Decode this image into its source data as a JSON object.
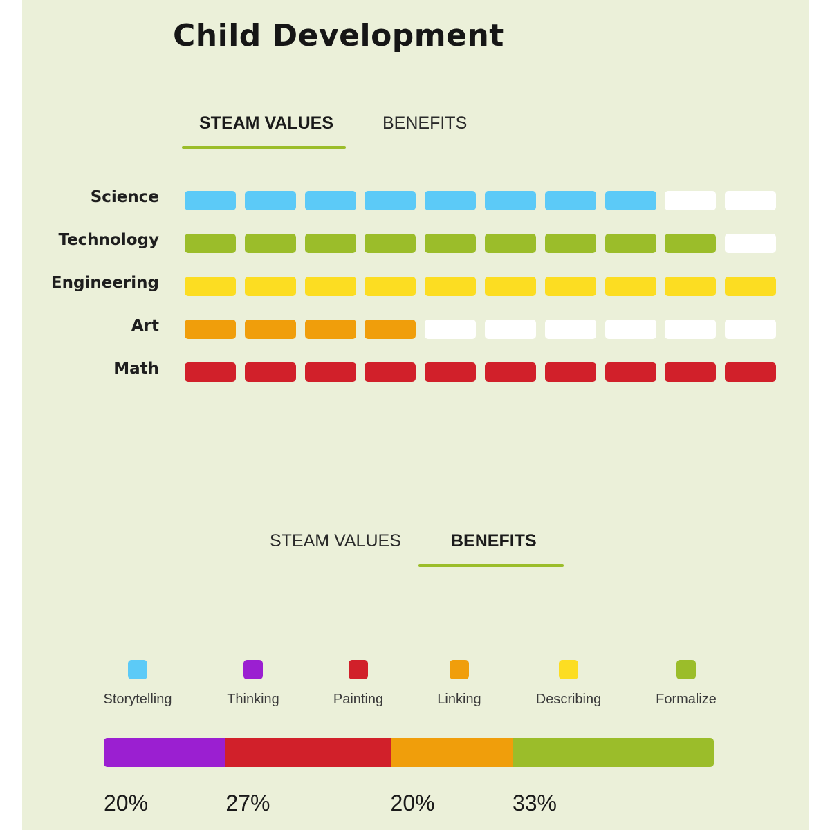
{
  "title": "Child Development",
  "tabs_top": {
    "items": [
      {
        "label": "STEAM VALUES",
        "active": true
      },
      {
        "label": "BENEFITS",
        "active": false
      }
    ]
  },
  "tabs_bottom": {
    "items": [
      {
        "label": "STEAM VALUES",
        "active": false
      },
      {
        "label": "BENEFITS",
        "active": true
      }
    ]
  },
  "colors": {
    "blue": "#5ccaf7",
    "green": "#9bbd2a",
    "yellow": "#fcdd22",
    "orange": "#f09e0b",
    "red": "#d1202a",
    "purple": "#9b1fd1",
    "empty": "#ffffff",
    "accent": "#9bbd2a"
  },
  "chart_data": [
    {
      "type": "bar",
      "title": "STEAM VALUES",
      "categories": [
        "Science",
        "Technology",
        "Engineering",
        "Art",
        "Math"
      ],
      "values": [
        8,
        9,
        10,
        4,
        10
      ],
      "max": 10,
      "series_colors": [
        "#5ccaf7",
        "#9bbd2a",
        "#fcdd22",
        "#f09e0b",
        "#d1202a"
      ]
    },
    {
      "type": "bar",
      "title": "BENEFITS",
      "stacked": true,
      "legend": [
        {
          "label": "Storytelling",
          "color": "#5ccaf7"
        },
        {
          "label": "Thinking",
          "color": "#9b1fd1"
        },
        {
          "label": "Painting",
          "color": "#d1202a"
        },
        {
          "label": "Linking",
          "color": "#f09e0b"
        },
        {
          "label": "Describing",
          "color": "#fcdd22"
        },
        {
          "label": "Formalize",
          "color": "#9bbd2a"
        }
      ],
      "segments": [
        {
          "series": "Thinking",
          "value": 20,
          "label": "20%",
          "color": "#9b1fd1"
        },
        {
          "series": "Painting",
          "value": 27,
          "label": "27%",
          "color": "#d1202a"
        },
        {
          "series": "Linking",
          "value": 20,
          "label": "20%",
          "color": "#f09e0b"
        },
        {
          "series": "Formalize",
          "value": 33,
          "label": "33%",
          "color": "#9bbd2a"
        }
      ],
      "legend_position": "top"
    }
  ]
}
